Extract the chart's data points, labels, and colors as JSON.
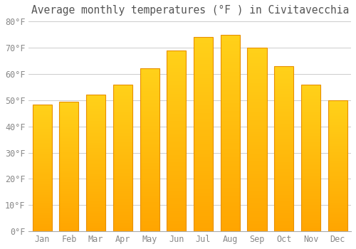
{
  "title": "Average monthly temperatures (°F ) in Civitavecchia",
  "months": [
    "Jan",
    "Feb",
    "Mar",
    "Apr",
    "May",
    "Jun",
    "Jul",
    "Aug",
    "Sep",
    "Oct",
    "Nov",
    "Dec"
  ],
  "values": [
    48.2,
    49.3,
    52.0,
    56.0,
    62.0,
    69.0,
    74.0,
    75.0,
    70.0,
    63.0,
    56.0,
    50.0
  ],
  "bar_color_main": "#FFA500",
  "bar_color_bright": "#FFD000",
  "bar_edge_color": "#E89000",
  "background_color": "#FFFFFF",
  "grid_color": "#CCCCCC",
  "title_color": "#555555",
  "tick_color": "#888888",
  "ylim": [
    0,
    80
  ],
  "yticks": [
    0,
    10,
    20,
    30,
    40,
    50,
    60,
    70,
    80
  ],
  "title_fontsize": 10.5,
  "tick_fontsize": 8.5
}
